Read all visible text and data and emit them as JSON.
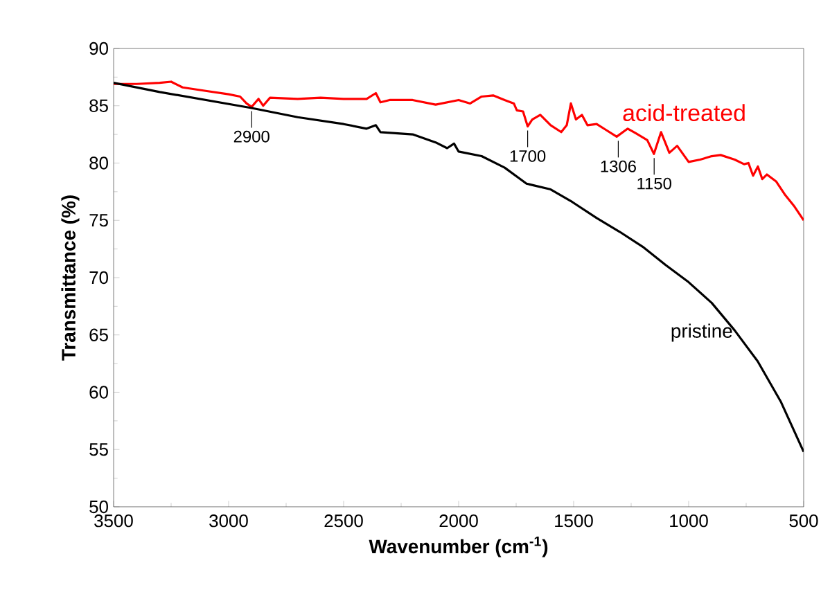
{
  "chart_data": {
    "type": "line",
    "xlabel": "Wavenumber (cm$^{-1}$)",
    "ylabel": "Transmittance (%)",
    "xlim": [
      3500,
      500
    ],
    "ylim": [
      50,
      90
    ],
    "xticks": [
      3500,
      3000,
      2500,
      2000,
      1500,
      1000,
      500
    ],
    "yticks": [
      50,
      55,
      60,
      65,
      70,
      75,
      80,
      85,
      90
    ],
    "grid": false,
    "legend": false,
    "series": [
      {
        "name": "acid-treated",
        "color": "#ff0000",
        "x": [
          3500,
          3400,
          3300,
          3250,
          3200,
          3100,
          3000,
          2950,
          2922,
          2900,
          2870,
          2850,
          2820,
          2700,
          2600,
          2500,
          2400,
          2360,
          2340,
          2300,
          2200,
          2100,
          2000,
          1950,
          1900,
          1850,
          1800,
          1760,
          1747,
          1720,
          1700,
          1680,
          1645,
          1600,
          1554,
          1530,
          1512,
          1490,
          1464,
          1440,
          1400,
          1360,
          1313,
          1265,
          1230,
          1180,
          1151,
          1120,
          1084,
          1050,
          1000,
          950,
          900,
          861,
          800,
          759,
          740,
          720,
          699,
          680,
          660,
          620,
          580,
          540,
          500
        ],
        "values": [
          86.9,
          86.9,
          87.0,
          87.1,
          86.6,
          86.3,
          86.0,
          85.8,
          85.2,
          84.9,
          85.6,
          85.0,
          85.7,
          85.6,
          85.7,
          85.6,
          85.6,
          86.1,
          85.3,
          85.5,
          85.5,
          85.1,
          85.5,
          85.2,
          85.8,
          85.9,
          85.5,
          85.2,
          84.6,
          84.5,
          83.2,
          83.8,
          84.2,
          83.3,
          82.7,
          83.3,
          85.2,
          83.8,
          84.2,
          83.3,
          83.4,
          82.9,
          82.3,
          83.0,
          82.6,
          82.0,
          80.8,
          82.7,
          80.9,
          81.5,
          80.1,
          80.3,
          80.6,
          80.7,
          80.3,
          79.9,
          80.0,
          78.9,
          79.7,
          78.6,
          79.0,
          78.4,
          77.2,
          76.2,
          75.0
        ]
      },
      {
        "name": "pristine",
        "color": "#000000",
        "x": [
          3500,
          3300,
          3100,
          2900,
          2700,
          2500,
          2400,
          2360,
          2340,
          2200,
          2100,
          2050,
          2020,
          2000,
          1900,
          1800,
          1705,
          1600,
          1506,
          1400,
          1300,
          1200,
          1100,
          1000,
          900,
          800,
          700,
          600,
          500
        ],
        "values": [
          87.0,
          86.2,
          85.5,
          84.8,
          84.0,
          83.4,
          83.0,
          83.3,
          82.7,
          82.5,
          81.8,
          81.3,
          81.7,
          81.0,
          80.6,
          79.6,
          78.2,
          77.7,
          76.6,
          75.2,
          74.0,
          72.7,
          71.1,
          69.6,
          67.8,
          65.4,
          62.7,
          59.2,
          54.8
        ]
      }
    ],
    "annotations": [
      {
        "text": "2900",
        "x": 2900,
        "y": 84.9
      },
      {
        "text": "1700",
        "x": 1700,
        "y": 83.2
      },
      {
        "text": "1306",
        "x": 1306,
        "y": 82.3
      },
      {
        "text": "1150",
        "x": 1150,
        "y": 80.8
      }
    ]
  }
}
